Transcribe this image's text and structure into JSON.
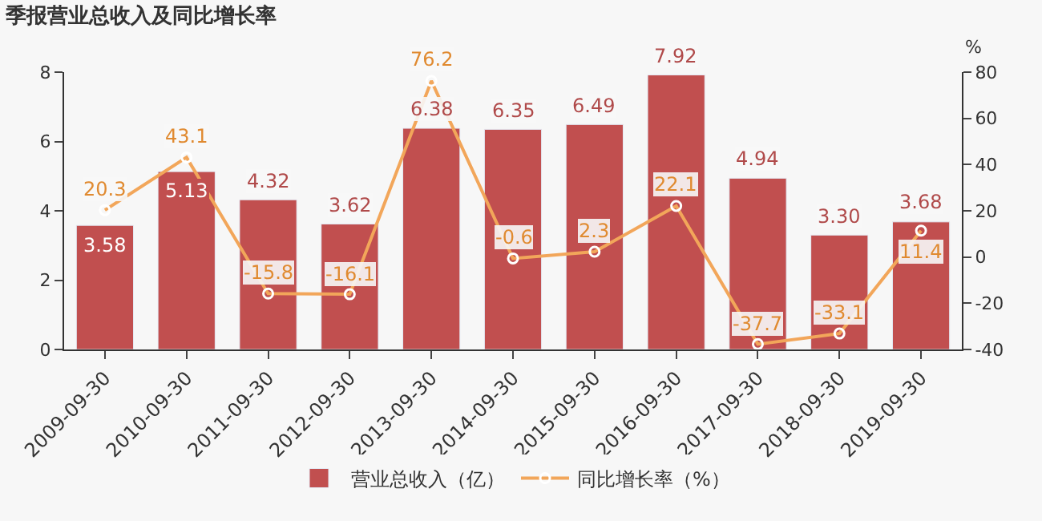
{
  "chart_data": {
    "type": "bar",
    "title": "季报营业总收入及同比增长率",
    "y2label": "%",
    "categories": [
      "2009-09-30",
      "2010-09-30",
      "2011-09-30",
      "2012-09-30",
      "2013-09-30",
      "2014-09-30",
      "2015-09-30",
      "2016-09-30",
      "2017-09-30",
      "2018-09-30",
      "2019-09-30"
    ],
    "series": [
      {
        "name": "营业总收入（亿）",
        "color": "#c14f4f",
        "values": [
          3.58,
          5.13,
          4.32,
          3.62,
          6.38,
          6.35,
          6.49,
          7.92,
          4.94,
          3.3,
          3.68
        ],
        "value_labels": [
          "3.58",
          "5.13",
          "4.32",
          "3.62",
          "6.38",
          "6.35",
          "6.49",
          "7.92",
          "4.94",
          "3.30",
          "3.68"
        ]
      },
      {
        "name": "同比增长率（%）",
        "type": "line",
        "axis": "y2",
        "color": "#f2a65a",
        "marker": "circle",
        "values": [
          20.3,
          43.1,
          -15.8,
          -16.1,
          76.2,
          -0.6,
          2.3,
          22.1,
          -37.7,
          -33.1,
          11.4
        ],
        "value_labels": [
          "20.3",
          "43.1",
          "-15.8",
          "-16.1",
          "76.2",
          "-0.6",
          "2.3",
          "22.1",
          "-37.7",
          "-33.1",
          "11.4"
        ]
      }
    ],
    "ylim": [
      0,
      8
    ],
    "yticks": [
      0,
      2,
      4,
      6,
      8
    ],
    "y2lim": [
      -40,
      80
    ],
    "y2ticks": [
      -40,
      -20,
      0,
      20,
      40,
      60,
      80
    ],
    "grid": false,
    "legend": "bottom"
  }
}
